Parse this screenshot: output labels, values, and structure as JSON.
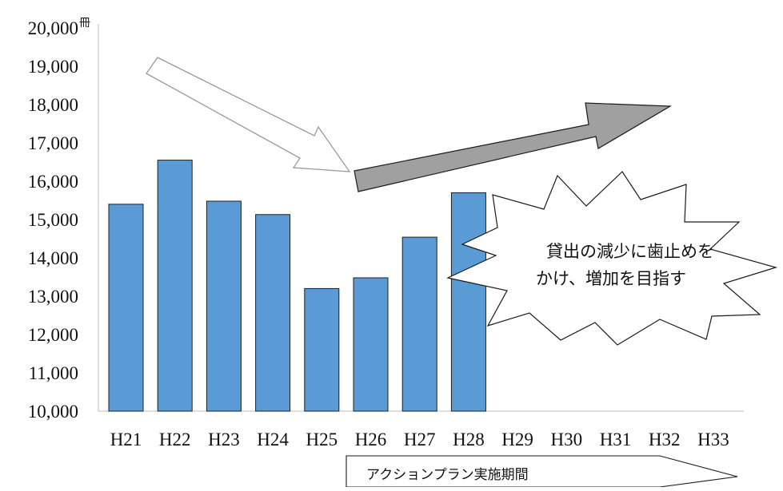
{
  "chart_data": {
    "type": "bar",
    "unit": "冊",
    "ylim": [
      10000,
      20000
    ],
    "y_ticks": [
      10000,
      11000,
      12000,
      13000,
      14000,
      15000,
      16000,
      17000,
      18000,
      19000,
      20000
    ],
    "y_tick_labels": [
      "10,000",
      "11,000",
      "12,000",
      "13,000",
      "14,000",
      "15,000",
      "16,000",
      "17,000",
      "18,000",
      "19,000",
      "20,000"
    ],
    "categories": [
      "H21",
      "H22",
      "H23",
      "H24",
      "H25",
      "H26",
      "H27",
      "H28",
      "H29",
      "H30",
      "H31",
      "H32",
      "H33"
    ],
    "values": [
      15400,
      16550,
      15480,
      15130,
      13200,
      13480,
      14540,
      15700,
      null,
      null,
      null,
      null,
      null
    ],
    "bar_color": "#5b9bd5",
    "bar_edge_color": "#1f1f1f",
    "grid": false,
    "legend": "none",
    "annotations": {
      "callout_lines": [
        "貸出の減少に歯止めを",
        "かけ、増加を目指す"
      ],
      "banner_label": "アクションプラン実施期間",
      "down_arrow_color": "#ffffff",
      "up_arrow_color": "#a0a0a0"
    }
  }
}
